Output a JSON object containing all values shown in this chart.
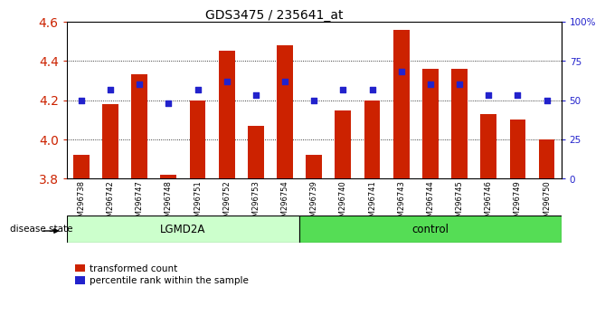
{
  "title": "GDS3475 / 235641_at",
  "samples": [
    "GSM296738",
    "GSM296742",
    "GSM296747",
    "GSM296748",
    "GSM296751",
    "GSM296752",
    "GSM296753",
    "GSM296754",
    "GSM296739",
    "GSM296740",
    "GSM296741",
    "GSM296743",
    "GSM296744",
    "GSM296745",
    "GSM296746",
    "GSM296749",
    "GSM296750"
  ],
  "groups": [
    "LGMD2A",
    "LGMD2A",
    "LGMD2A",
    "LGMD2A",
    "LGMD2A",
    "LGMD2A",
    "LGMD2A",
    "LGMD2A",
    "control",
    "control",
    "control",
    "control",
    "control",
    "control",
    "control",
    "control",
    "control"
  ],
  "bar_values": [
    3.92,
    4.18,
    4.33,
    3.82,
    4.2,
    4.45,
    4.07,
    4.48,
    3.92,
    4.15,
    4.2,
    4.56,
    4.36,
    4.36,
    4.13,
    4.1,
    4.0
  ],
  "dot_percentiles": [
    50,
    57,
    60,
    48,
    57,
    62,
    53,
    62,
    50,
    57,
    57,
    68,
    60,
    60,
    53,
    53,
    50
  ],
  "ylim_left": [
    3.8,
    4.6
  ],
  "ylim_right": [
    0,
    100
  ],
  "bar_color": "#cc2200",
  "dot_color": "#2222cc",
  "group_colors": {
    "LGMD2A": "#ccffcc",
    "control": "#55dd55"
  },
  "left_tick_color": "#cc2200",
  "right_tick_color": "#2222cc",
  "plot_bg_color": "#ffffff"
}
